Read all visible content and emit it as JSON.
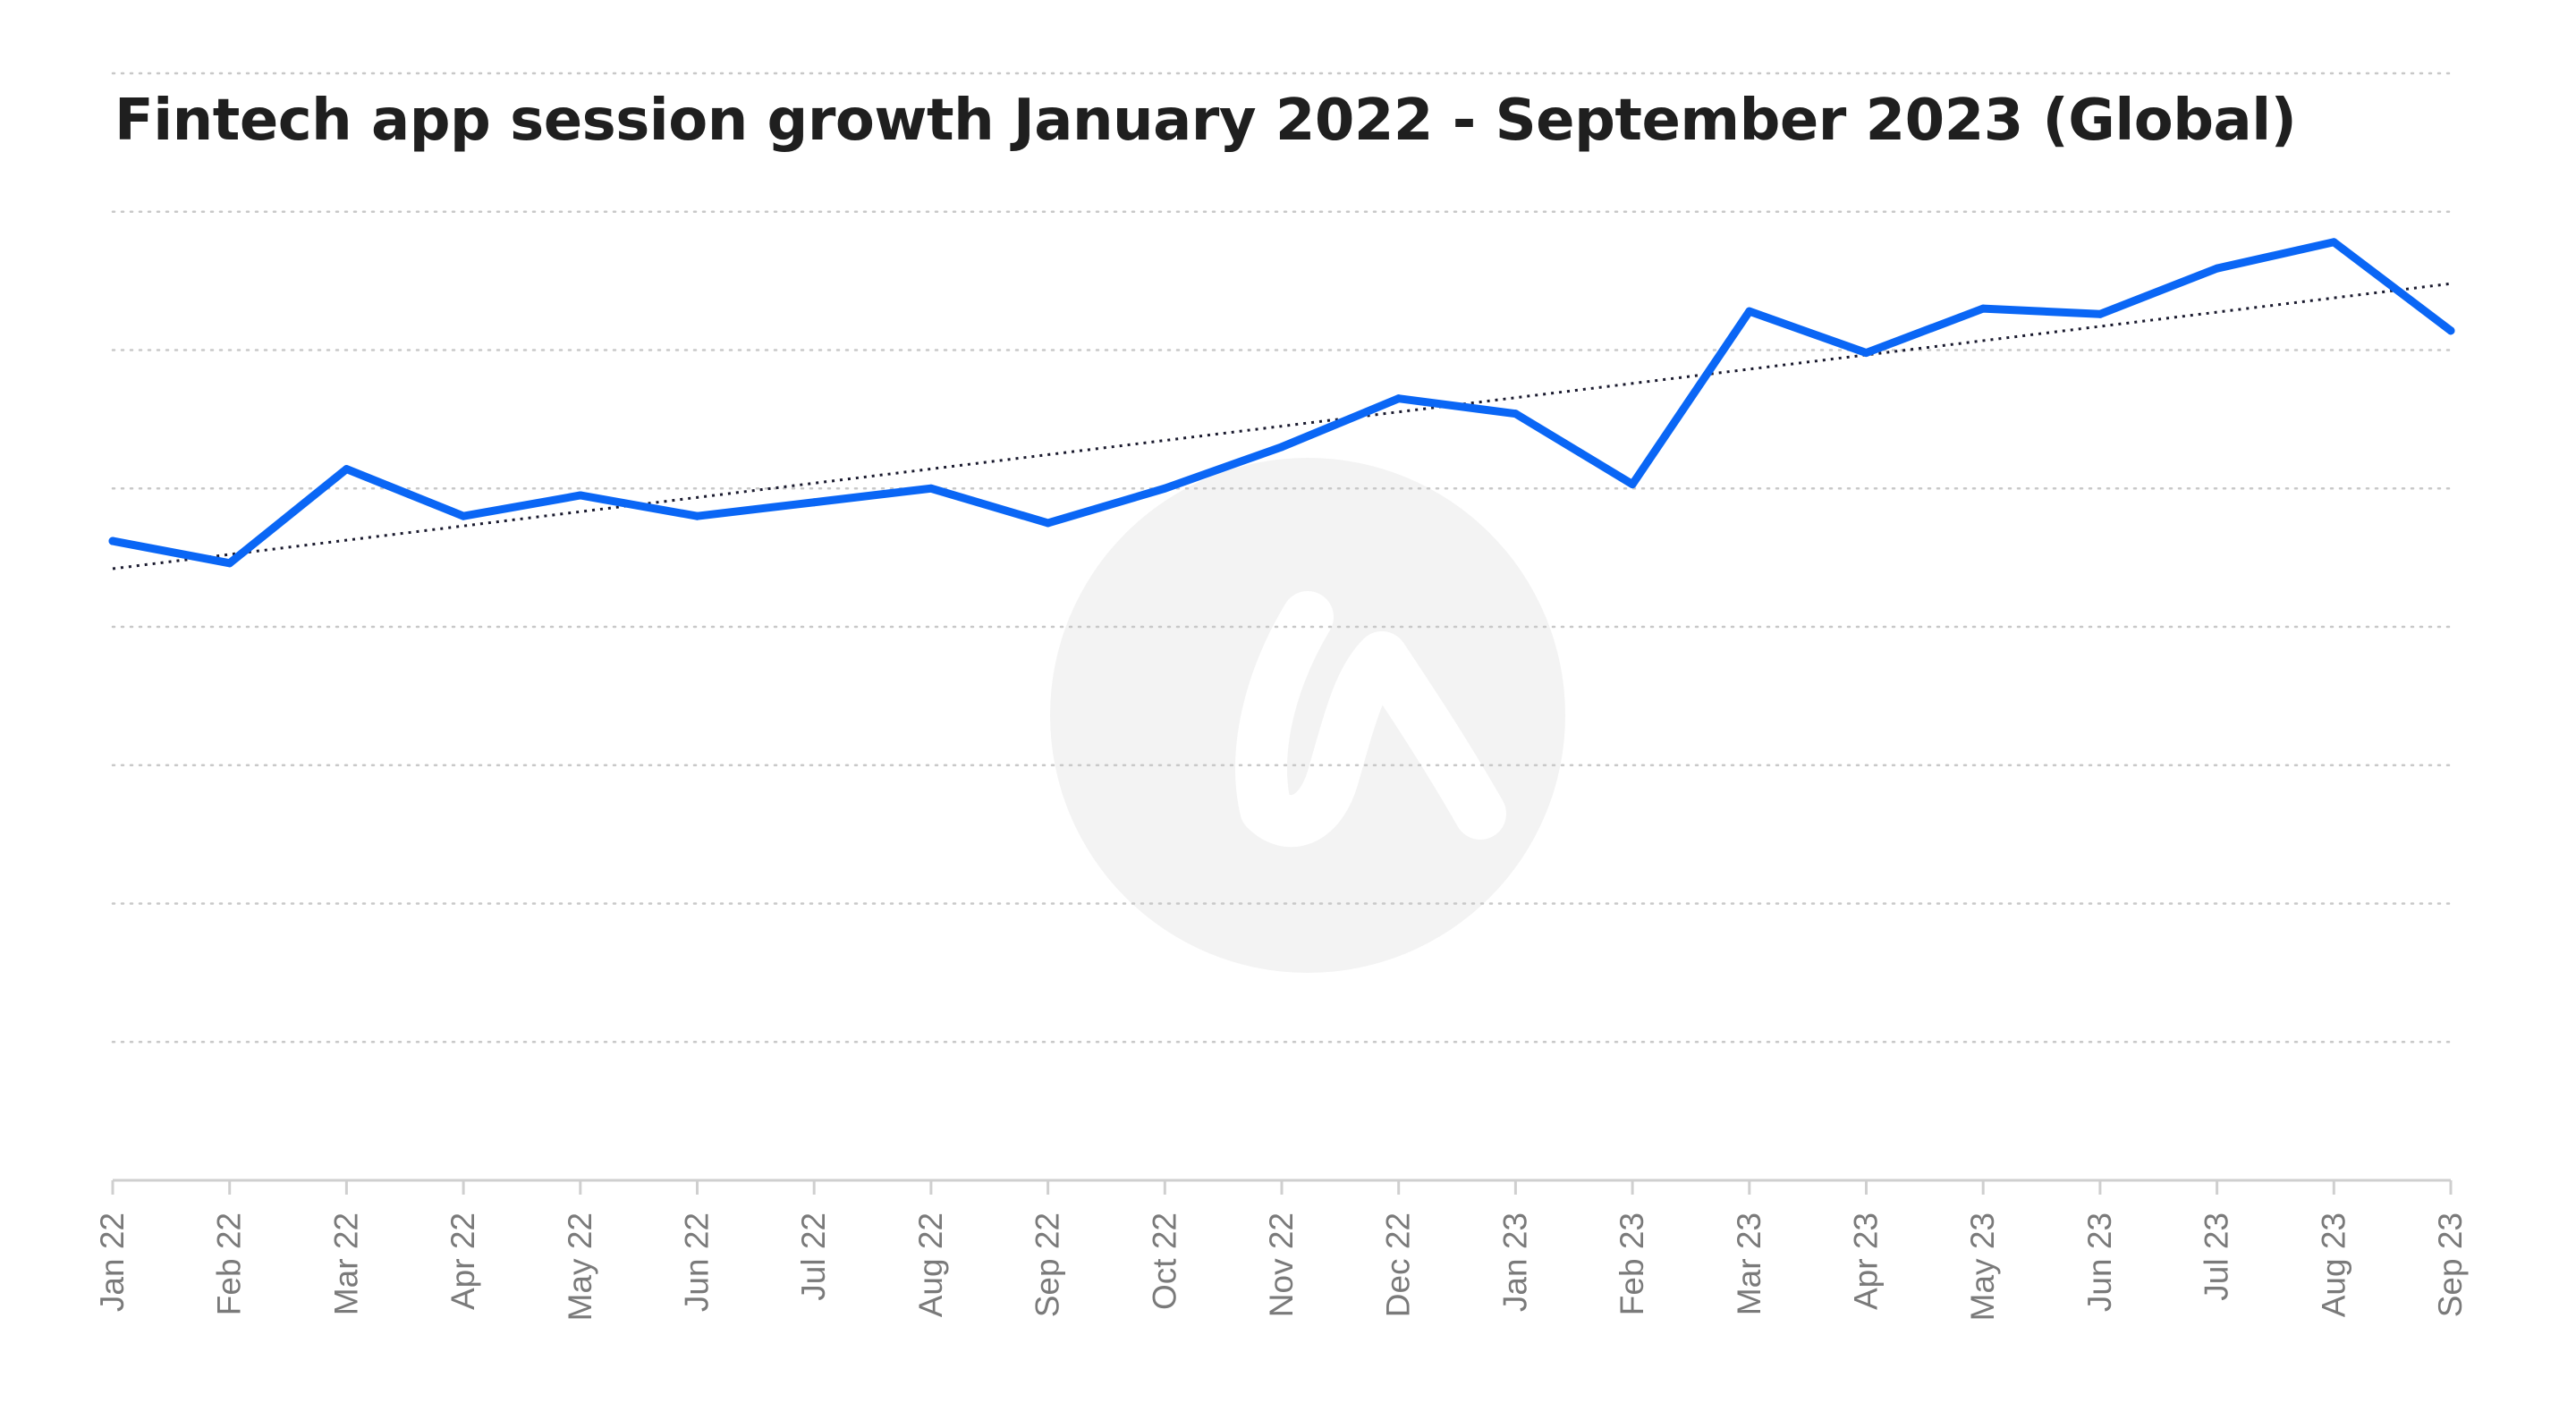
{
  "chart_data": {
    "type": "line",
    "title": "Fintech app session growth January 2022 - September 2023 (Global)",
    "xlabel": "",
    "ylabel": "",
    "categories": [
      "Jan 22",
      "Feb 22",
      "Mar 22",
      "Apr 22",
      "May 22",
      "Jun 22",
      "Jul 22",
      "Aug 22",
      "Sep 22",
      "Oct 22",
      "Nov 22",
      "Dec 22",
      "Jan 23",
      "Feb 23",
      "Mar 23",
      "Apr 23",
      "May 23",
      "Jun 23",
      "Jul 23",
      "Aug 23",
      "Sep 23"
    ],
    "series": [
      {
        "values": [
          4.62,
          4.46,
          5.14,
          4.8,
          4.95,
          4.8,
          4.9,
          5.0,
          4.75,
          5.0,
          5.3,
          5.65,
          5.54,
          5.03,
          6.28,
          5.98,
          6.3,
          6.26,
          6.59,
          6.78,
          6.14
        ]
      }
    ],
    "trendline": {
      "style": "dotted",
      "start": 4.42,
      "end": 6.48
    },
    "ylim": [
      0,
      8
    ],
    "grid": true,
    "legend": "none",
    "y_tick_labels_shown": false,
    "colors": {
      "line": "#0a66f5",
      "trendline": "#1a1a2e",
      "grid": "#c8c8c8",
      "axis": "#cfcfcf",
      "watermark": "#f3f3f3"
    },
    "watermark_icon": "brand-logo-watermark"
  }
}
